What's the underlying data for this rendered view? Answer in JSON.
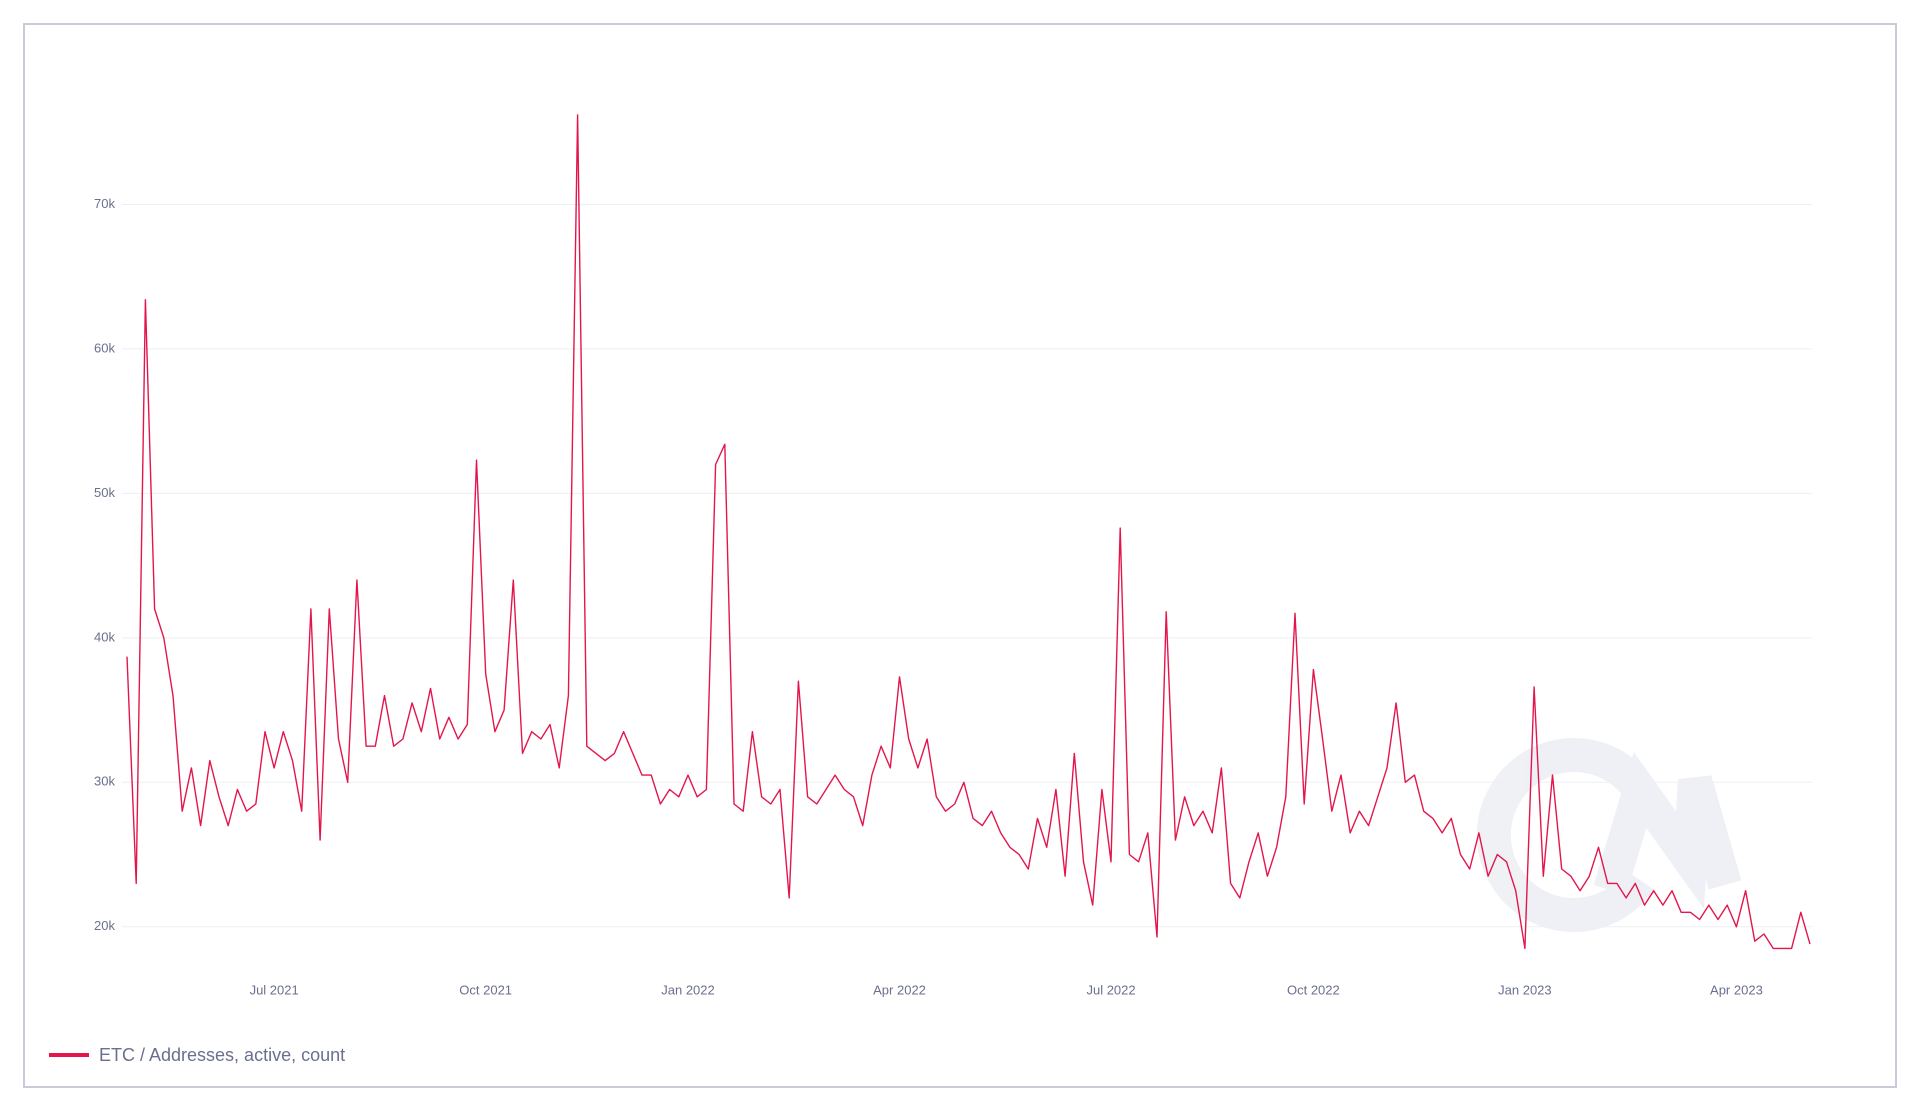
{
  "chart_data": {
    "type": "line",
    "categories": [
      null,
      null,
      null,
      null,
      null,
      null,
      null,
      null,
      null,
      null,
      null,
      null,
      null,
      null,
      null,
      null,
      "Jul 2021",
      null,
      null,
      null,
      null,
      null,
      null,
      null,
      null,
      null,
      null,
      null,
      null,
      null,
      null,
      null,
      null,
      null,
      null,
      null,
      null,
      null,
      null,
      "Oct 2021",
      null,
      null,
      null,
      null,
      null,
      null,
      null,
      null,
      null,
      null,
      null,
      null,
      null,
      null,
      null,
      null,
      null,
      null,
      null,
      null,
      null,
      "Jan 2022",
      null,
      null,
      null,
      null,
      null,
      null,
      null,
      null,
      null,
      null,
      null,
      null,
      null,
      null,
      null,
      null,
      null,
      null,
      null,
      null,
      null,
      null,
      "Apr 2022",
      null,
      null,
      null,
      null,
      null,
      null,
      null,
      null,
      null,
      null,
      null,
      null,
      null,
      null,
      null,
      null,
      null,
      null,
      null,
      null,
      null,
      null,
      "Jul 2022",
      null,
      null,
      null,
      null,
      null,
      null,
      null,
      null,
      null,
      null,
      null,
      null,
      null,
      null,
      null,
      null,
      null,
      null,
      null,
      null,
      null,
      "Oct 2022",
      null,
      null,
      null,
      null,
      null,
      null,
      null,
      null,
      null,
      null,
      null,
      null,
      null,
      null,
      null,
      null,
      null,
      null,
      null,
      null,
      null,
      null,
      "Jan 2023",
      null,
      null,
      null,
      null,
      null,
      null,
      null,
      null,
      null,
      null,
      null,
      null,
      null,
      null,
      null,
      null,
      null,
      null,
      null,
      null,
      null,
      null,
      "Apr 2023",
      null,
      null,
      null,
      null,
      null,
      null,
      null,
      null
    ],
    "series": [
      {
        "name": "ETC / Addresses, active, count",
        "color": "#e3164c",
        "values": [
          38700,
          23000,
          63400,
          42000,
          40000,
          36000,
          28000,
          31000,
          27000,
          31500,
          29000,
          27000,
          29500,
          28000,
          28500,
          33500,
          31000,
          33500,
          31500,
          28000,
          42000,
          26000,
          42000,
          33000,
          30000,
          44000,
          32500,
          32500,
          36000,
          32500,
          33000,
          35500,
          33500,
          36500,
          33000,
          34500,
          33000,
          34000,
          52300,
          37500,
          33500,
          35000,
          44000,
          32000,
          33500,
          33000,
          34000,
          31000,
          36000,
          76200,
          32500,
          32000,
          31500,
          32000,
          33500,
          32000,
          30500,
          30500,
          28500,
          29500,
          29000,
          30500,
          29000,
          29500,
          52000,
          53400,
          28500,
          28000,
          33500,
          29000,
          28500,
          29500,
          22000,
          37000,
          29000,
          28500,
          29500,
          30500,
          29500,
          29000,
          27000,
          30500,
          32500,
          31000,
          37300,
          33000,
          31000,
          33000,
          29000,
          28000,
          28500,
          30000,
          27500,
          27000,
          28000,
          26500,
          25500,
          25000,
          24000,
          27500,
          25500,
          29500,
          23500,
          32000,
          24500,
          21500,
          29500,
          24500,
          47600,
          25000,
          24500,
          26500,
          19300,
          41800,
          26000,
          29000,
          27000,
          28000,
          26500,
          31000,
          23000,
          22000,
          24500,
          26500,
          23500,
          25500,
          29000,
          41700,
          28500,
          37800,
          33000,
          28000,
          30500,
          26500,
          28000,
          27000,
          29000,
          31000,
          35500,
          30000,
          30500,
          28000,
          27500,
          26500,
          27500,
          25000,
          24000,
          26500,
          23500,
          25000,
          24500,
          22500,
          18500,
          36600,
          23500,
          30500,
          24000,
          23500,
          22500,
          23500,
          25500,
          23000,
          23000,
          22000,
          23000,
          21500,
          22500,
          21500,
          22500,
          21000,
          21000,
          20500,
          21500,
          20500,
          21500,
          20000,
          22500,
          19000,
          19500,
          18500,
          18500,
          18500,
          21000,
          18800
        ]
      }
    ],
    "ylim": [
      16800,
      80000
    ],
    "yticks": [
      {
        "value": 20000,
        "label": "20k"
      },
      {
        "value": 30000,
        "label": "30k"
      },
      {
        "value": 40000,
        "label": "40k"
      },
      {
        "value": 50000,
        "label": "50k"
      },
      {
        "value": 60000,
        "label": "60k"
      },
      {
        "value": 70000,
        "label": "70k"
      }
    ],
    "grid": true
  }
}
